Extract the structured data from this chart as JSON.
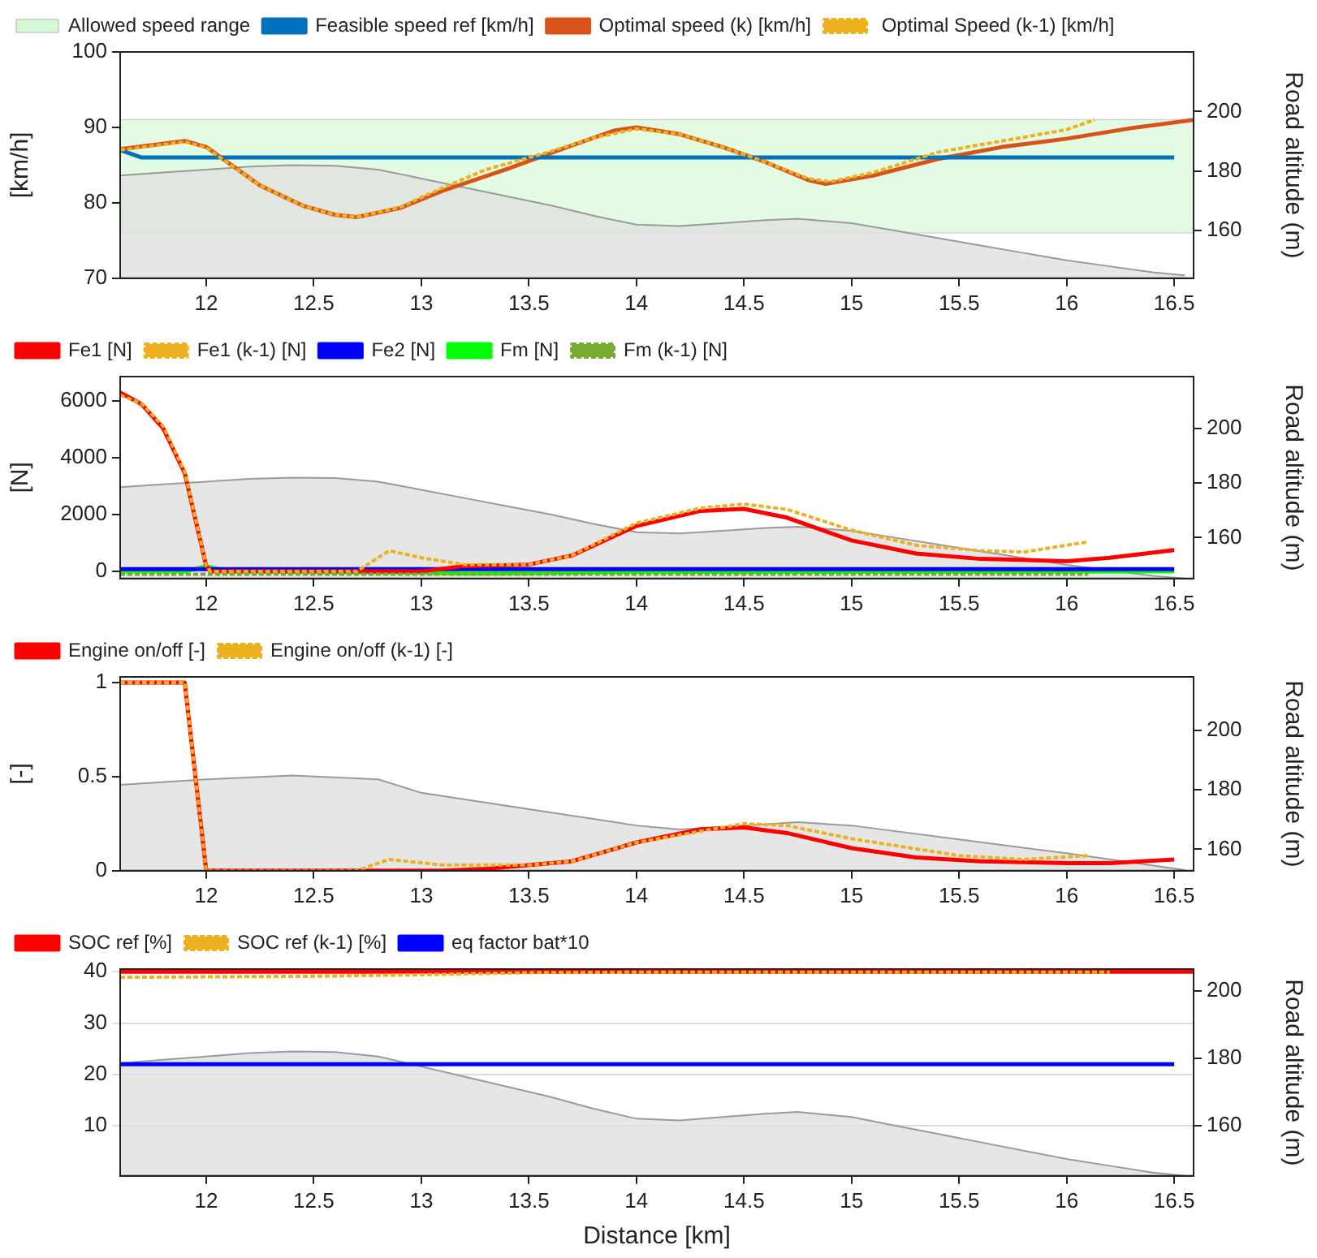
{
  "chart_data": [
    {
      "type": "line",
      "ylabel": "[km/h]",
      "y2label": "Road altitude (m)",
      "xlim": [
        11.6,
        16.59
      ],
      "xticks": [
        12,
        12.5,
        13,
        13.5,
        14,
        14.5,
        15,
        15.5,
        16,
        16.5
      ],
      "ylim": [
        70,
        100
      ],
      "yticks": [
        70,
        80,
        90,
        100
      ],
      "y2lim": [
        144,
        220
      ],
      "y2ticks": [
        160,
        180,
        200
      ],
      "legend": "top left",
      "bands": [
        {
          "axis": "y",
          "from": 76,
          "to": 91,
          "label": "Allowed speed range",
          "color": "#90ee90"
        }
      ],
      "series": [
        {
          "name": "Feasible speed ref [km/h]",
          "color": "#0072bd",
          "x": [
            11.6,
            11.7,
            16.5
          ],
          "values": [
            87,
            86,
            86
          ]
        },
        {
          "name": "Optimal speed (k) [km/h]",
          "color": "#d95319",
          "x": [
            11.6,
            11.9,
            12.0,
            12.25,
            12.45,
            12.6,
            12.7,
            12.9,
            13.1,
            13.4,
            13.7,
            13.9,
            14.0,
            14.2,
            14.4,
            14.6,
            14.8,
            14.88,
            15.1,
            15.4,
            15.7,
            16.0,
            16.3,
            16.59
          ],
          "values": [
            87.1,
            88.2,
            87.4,
            82.3,
            79.6,
            78.4,
            78.1,
            79.3,
            81.6,
            84.5,
            87.6,
            89.6,
            90.0,
            89.1,
            87.4,
            85.4,
            83.0,
            82.5,
            83.6,
            85.8,
            87.4,
            88.5,
            89.9,
            91.0
          ]
        },
        {
          "name": " Optimal Speed (k-1) [km/h]",
          "color": "#edb120",
          "line_style": "dotted",
          "x": [
            11.6,
            11.9,
            12.0,
            12.25,
            12.45,
            12.6,
            12.7,
            12.9,
            13.1,
            13.3,
            13.6,
            13.8,
            14.0,
            14.2,
            14.4,
            14.6,
            14.8,
            14.9,
            15.1,
            15.4,
            15.7,
            16.0,
            16.13
          ],
          "values": [
            87.0,
            88.1,
            87.3,
            82.3,
            79.6,
            78.4,
            78.1,
            79.4,
            82.0,
            84.4,
            86.8,
            88.6,
            89.8,
            89.1,
            87.4,
            85.4,
            83.2,
            82.8,
            84.0,
            86.7,
            88.2,
            89.7,
            91.0
          ]
        },
        {
          "type": "area",
          "axis": "y2",
          "color": "#e0e0e0",
          "x": [
            11.6,
            11.8,
            12.0,
            12.2,
            12.4,
            12.6,
            12.8,
            13.0,
            13.2,
            13.4,
            13.6,
            13.8,
            14.0,
            14.2,
            14.4,
            14.6,
            14.75,
            15.0,
            15.2,
            15.4,
            15.6,
            15.8,
            16.0,
            16.2,
            16.4,
            16.55
          ],
          "values": [
            178.5,
            179.5,
            180.5,
            181.5,
            182,
            181.8,
            180.5,
            177.5,
            174.5,
            171.5,
            168.5,
            165,
            162,
            161.5,
            162.5,
            163.5,
            164,
            162.5,
            160,
            157.5,
            155,
            152.5,
            150,
            148,
            146,
            145
          ]
        }
      ]
    },
    {
      "type": "line",
      "ylabel": "[N]",
      "y2label": "Road altitude (m)",
      "xlim": [
        11.6,
        16.59
      ],
      "xticks": [
        12,
        12.5,
        13,
        13.5,
        14,
        14.5,
        15,
        15.5,
        16,
        16.5
      ],
      "ylim": [
        -250,
        6850
      ],
      "yticks": [
        0,
        2000,
        4000,
        6000
      ],
      "y2lim": [
        145,
        219
      ],
      "y2ticks": [
        160,
        180,
        200
      ],
      "legend": "top left",
      "series": [
        {
          "name": "Fe1 [N]",
          "color": "#ff0000",
          "x": [
            11.6,
            11.7,
            11.8,
            11.9,
            12.0,
            12.02,
            13.0,
            13.2,
            13.5,
            13.7,
            14.0,
            14.3,
            14.5,
            14.7,
            15.0,
            15.3,
            15.6,
            16.0,
            16.2,
            16.5
          ],
          "values": [
            6290,
            5880,
            5030,
            3460,
            190,
            0,
            0,
            190,
            240,
            560,
            1600,
            2130,
            2200,
            1890,
            1090,
            630,
            440,
            360,
            480,
            750
          ]
        },
        {
          "name": "Fe1 (k-1) [N]",
          "color": "#edb120",
          "line_style": "dotted",
          "x": [
            11.6,
            11.7,
            11.8,
            11.9,
            12.0,
            12.02,
            12.7,
            12.85,
            13.0,
            13.2,
            13.5,
            13.7,
            14.0,
            14.3,
            14.5,
            14.7,
            15.0,
            15.3,
            15.6,
            15.8,
            16.1
          ],
          "values": [
            6200,
            5900,
            5100,
            3500,
            200,
            0,
            0,
            730,
            480,
            240,
            240,
            560,
            1700,
            2230,
            2370,
            2180,
            1450,
            920,
            730,
            680,
            1040
          ]
        },
        {
          "name": "Fe2 [N]",
          "color": "#0000ff",
          "x": [
            11.6,
            16.5
          ],
          "values": [
            80,
            80
          ]
        },
        {
          "name": "Fm [N]",
          "color": "#00ff00",
          "x": [
            11.6,
            11.9,
            12.0,
            12.1,
            13.0,
            13.2,
            13.5,
            14.0,
            16.5
          ],
          "values": [
            0,
            0,
            180,
            0,
            -40,
            -80,
            -60,
            -20,
            0
          ]
        },
        {
          "name": "Fm (k-1) [N]",
          "color": "#77ac30",
          "line_style": "dotted",
          "x": [
            11.6,
            12.7,
            12.8,
            16.1
          ],
          "values": [
            -100,
            -100,
            -100,
            -100
          ]
        },
        {
          "type": "area",
          "axis": "y2",
          "color": "#e0e0e0",
          "x": [
            11.6,
            11.8,
            12.0,
            12.2,
            12.4,
            12.6,
            12.8,
            13.0,
            13.2,
            13.4,
            13.6,
            13.8,
            14.0,
            14.2,
            14.4,
            14.6,
            14.75,
            15.0,
            15.2,
            15.4,
            15.6,
            15.8,
            16.0,
            16.2,
            16.4,
            16.55
          ],
          "values": [
            178.5,
            179.5,
            180.5,
            181.5,
            182,
            181.8,
            180.5,
            177.5,
            174.5,
            171.5,
            168.5,
            165,
            162,
            161.5,
            162.5,
            163.5,
            164,
            162.5,
            160,
            157.5,
            155,
            152.5,
            150,
            148,
            146,
            145
          ]
        }
      ]
    },
    {
      "type": "line",
      "ylabel": "[-]",
      "y2label": "Road altitude (m)",
      "xlim": [
        11.6,
        16.59
      ],
      "xticks": [
        12,
        12.5,
        13,
        13.5,
        14,
        14.5,
        15,
        15.5,
        16,
        16.5
      ],
      "ylim": [
        0,
        1.03
      ],
      "yticks": [
        0,
        0.5,
        1
      ],
      "y2lim": [
        152.8,
        218
      ],
      "y2ticks": [
        160,
        180,
        200
      ],
      "legend": "top left",
      "series": [
        {
          "name": "Engine on/off [-]",
          "color": "#ff0000",
          "x": [
            11.6,
            11.9,
            12.0,
            13.1,
            13.3,
            13.7,
            14.0,
            14.3,
            14.5,
            14.7,
            15.0,
            15.3,
            15.6,
            16.0,
            16.2,
            16.5
          ],
          "values": [
            1,
            1,
            0,
            0,
            0.01,
            0.05,
            0.15,
            0.22,
            0.23,
            0.2,
            0.12,
            0.07,
            0.05,
            0.04,
            0.04,
            0.06
          ]
        },
        {
          "name": "Engine on/off (k-1) [-]",
          "color": "#edb120",
          "line_style": "dotted",
          "x": [
            11.6,
            11.9,
            12.0,
            12.7,
            12.85,
            13.1,
            13.5,
            13.7,
            14.0,
            14.5,
            14.7,
            15.0,
            15.5,
            15.8,
            16.1
          ],
          "values": [
            1,
            1,
            0,
            0,
            0.06,
            0.03,
            0.03,
            0.05,
            0.15,
            0.25,
            0.24,
            0.17,
            0.08,
            0.06,
            0.08
          ]
        },
        {
          "type": "area",
          "axis": "y2",
          "color": "#e0e0e0",
          "x": [
            11.6,
            12.0,
            12.4,
            12.8,
            13.0,
            13.5,
            14.0,
            14.2,
            14.5,
            14.75,
            15.0,
            15.5,
            16.0,
            16.55
          ],
          "values": [
            181.7,
            183.5,
            184.8,
            183.5,
            179,
            173.5,
            168,
            166.7,
            168,
            169.1,
            168,
            163.3,
            158.7,
            153
          ]
        }
      ]
    },
    {
      "type": "line",
      "xlabel": "Distance [km]",
      "y2label": "Road altitude (m)",
      "xlim": [
        11.6,
        16.59
      ],
      "xticks": [
        12,
        12.5,
        13,
        13.5,
        14,
        14.5,
        15,
        15.5,
        16,
        16.5
      ],
      "ylim": [
        0.3,
        40.5
      ],
      "yticks": [
        10,
        20,
        30,
        40
      ],
      "y2lim": [
        145,
        206.5
      ],
      "y2ticks": [
        160,
        180,
        200
      ],
      "legend": "top left",
      "grid": "y",
      "series": [
        {
          "name": "SOC ref [%]",
          "color": "#ff0000",
          "x": [
            11.6,
            16.59
          ],
          "values": [
            40,
            40
          ]
        },
        {
          "name": "SOC ref (k-1) [%]",
          "color": "#edb120",
          "line_style": "dotted",
          "x": [
            11.6,
            12.5,
            13.0,
            13.5,
            14.0,
            16.2
          ],
          "values": [
            38.9,
            39.1,
            39.4,
            39.8,
            39.9,
            39.9
          ]
        },
        {
          "name": "eq factor bat*10",
          "color": "#0000ff",
          "x": [
            11.6,
            16.5
          ],
          "values": [
            22,
            22
          ]
        },
        {
          "type": "area",
          "axis": "y2",
          "color": "#e0e0e0",
          "x": [
            11.6,
            11.8,
            12.0,
            12.2,
            12.4,
            12.6,
            12.8,
            13.0,
            13.2,
            13.4,
            13.6,
            13.8,
            14.0,
            14.2,
            14.4,
            14.6,
            14.75,
            15.0,
            15.2,
            15.4,
            15.6,
            15.8,
            16.0,
            16.2,
            16.4,
            16.55
          ],
          "values": [
            178.5,
            179.5,
            180.5,
            181.5,
            182,
            181.8,
            180.5,
            177.5,
            174.5,
            171.5,
            168.5,
            165,
            162,
            161.5,
            162.5,
            163.5,
            164,
            162.5,
            160,
            157.5,
            155,
            152.5,
            150,
            148,
            146,
            145
          ]
        }
      ]
    }
  ]
}
